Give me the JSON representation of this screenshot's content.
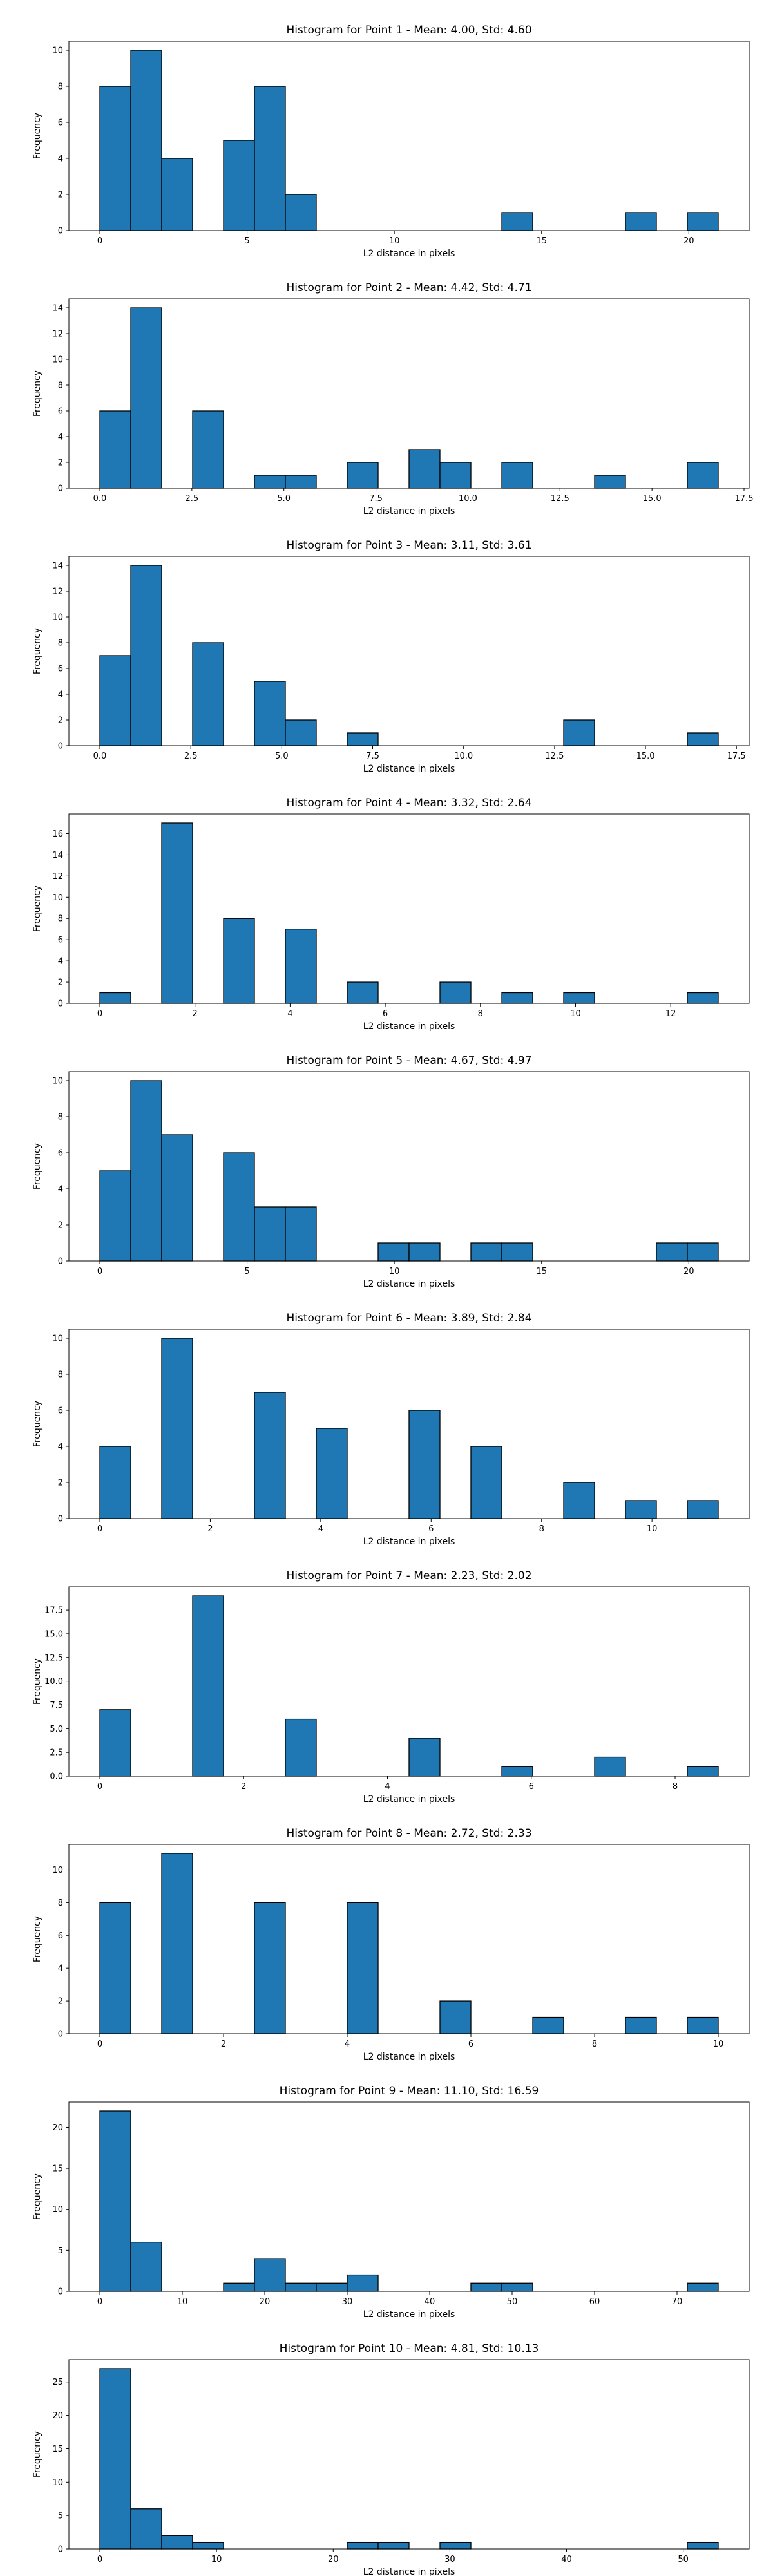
{
  "chart_data": [
    {
      "type": "bar",
      "title": "Histogram for Point 1 - Mean: 4.00, Std: 4.60",
      "xlabel": "L2 distance in pixels",
      "ylabel": "Frequency",
      "xlim": [
        -1.05,
        22.05
      ],
      "ylim": [
        0,
        10.5
      ],
      "xticks": [
        0,
        5,
        10,
        15,
        20
      ],
      "xtick_labels": [
        "0",
        "5",
        "10",
        "15",
        "20"
      ],
      "yticks": [
        0,
        2,
        4,
        6,
        8,
        10
      ],
      "ytick_labels": [
        "0",
        "2",
        "4",
        "6",
        "8",
        "10"
      ],
      "bin_width": 1.05,
      "bins": [
        {
          "x": 0,
          "count": 8
        },
        {
          "x": 1.05,
          "count": 10
        },
        {
          "x": 2.1,
          "count": 4
        },
        {
          "x": 4.2,
          "count": 5
        },
        {
          "x": 5.25,
          "count": 8
        },
        {
          "x": 6.3,
          "count": 2
        },
        {
          "x": 13.65,
          "count": 1
        },
        {
          "x": 17.85,
          "count": 1
        },
        {
          "x": 19.95,
          "count": 1
        }
      ]
    },
    {
      "type": "bar",
      "title": "Histogram for Point 2 - Mean: 4.42, Std: 4.71",
      "xlabel": "L2 distance in pixels",
      "ylabel": "Frequency",
      "xlim": [
        -0.84,
        17.64
      ],
      "ylim": [
        0,
        14.7
      ],
      "xticks": [
        0,
        2.5,
        5,
        7.5,
        10,
        12.5,
        15,
        17.5
      ],
      "xtick_labels": [
        "0.0",
        "2.5",
        "5.0",
        "7.5",
        "10.0",
        "12.5",
        "15.0",
        "17.5"
      ],
      "yticks": [
        0,
        2,
        4,
        6,
        8,
        10,
        12,
        14
      ],
      "ytick_labels": [
        "0",
        "2",
        "4",
        "6",
        "8",
        "10",
        "12",
        "14"
      ],
      "bin_width": 0.84,
      "bins": [
        {
          "x": 0,
          "count": 6
        },
        {
          "x": 0.84,
          "count": 14
        },
        {
          "x": 2.52,
          "count": 6
        },
        {
          "x": 4.2,
          "count": 1
        },
        {
          "x": 5.04,
          "count": 1
        },
        {
          "x": 6.72,
          "count": 2
        },
        {
          "x": 8.4,
          "count": 3
        },
        {
          "x": 9.24,
          "count": 2
        },
        {
          "x": 10.92,
          "count": 2
        },
        {
          "x": 13.44,
          "count": 1
        },
        {
          "x": 15.96,
          "count": 2
        }
      ]
    },
    {
      "type": "bar",
      "title": "Histogram for Point 3 - Mean: 3.11, Std: 3.61",
      "xlabel": "L2 distance in pixels",
      "ylabel": "Frequency",
      "xlim": [
        -0.85,
        17.85
      ],
      "ylim": [
        0,
        14.7
      ],
      "xticks": [
        0,
        2.5,
        5,
        7.5,
        10,
        12.5,
        15,
        17.5
      ],
      "xtick_labels": [
        "0.0",
        "2.5",
        "5.0",
        "7.5",
        "10.0",
        "12.5",
        "15.0",
        "17.5"
      ],
      "yticks": [
        0,
        2,
        4,
        6,
        8,
        10,
        12,
        14
      ],
      "ytick_labels": [
        "0",
        "2",
        "4",
        "6",
        "8",
        "10",
        "12",
        "14"
      ],
      "bin_width": 0.85,
      "bins": [
        {
          "x": 0,
          "count": 7
        },
        {
          "x": 0.85,
          "count": 14
        },
        {
          "x": 2.55,
          "count": 8
        },
        {
          "x": 4.25,
          "count": 5
        },
        {
          "x": 5.1,
          "count": 2
        },
        {
          "x": 6.8,
          "count": 1
        },
        {
          "x": 12.75,
          "count": 2
        },
        {
          "x": 16.15,
          "count": 1
        }
      ]
    },
    {
      "type": "bar",
      "title": "Histogram for Point 4 - Mean: 3.32, Std: 2.64",
      "xlabel": "L2 distance in pixels",
      "ylabel": "Frequency",
      "xlim": [
        -0.65,
        13.65
      ],
      "ylim": [
        0,
        17.85
      ],
      "xticks": [
        0,
        2,
        4,
        6,
        8,
        10,
        12
      ],
      "xtick_labels": [
        "0",
        "2",
        "4",
        "6",
        "8",
        "10",
        "12"
      ],
      "yticks": [
        0,
        2,
        4,
        6,
        8,
        10,
        12,
        14,
        16
      ],
      "ytick_labels": [
        "0",
        "2",
        "4",
        "6",
        "8",
        "10",
        "12",
        "14",
        "16"
      ],
      "bin_width": 0.65,
      "bins": [
        {
          "x": 0,
          "count": 1
        },
        {
          "x": 1.3,
          "count": 17
        },
        {
          "x": 2.6,
          "count": 8
        },
        {
          "x": 3.9,
          "count": 7
        },
        {
          "x": 5.2,
          "count": 2
        },
        {
          "x": 7.15,
          "count": 2
        },
        {
          "x": 8.45,
          "count": 1
        },
        {
          "x": 9.75,
          "count": 1
        },
        {
          "x": 12.35,
          "count": 1
        }
      ]
    },
    {
      "type": "bar",
      "title": "Histogram for Point 5 - Mean: 4.67, Std: 4.97",
      "xlabel": "L2 distance in pixels",
      "ylabel": "Frequency",
      "xlim": [
        -1.05,
        22.05
      ],
      "ylim": [
        0,
        10.5
      ],
      "xticks": [
        0,
        5,
        10,
        15,
        20
      ],
      "xtick_labels": [
        "0",
        "5",
        "10",
        "15",
        "20"
      ],
      "yticks": [
        0,
        2,
        4,
        6,
        8,
        10
      ],
      "ytick_labels": [
        "0",
        "2",
        "4",
        "6",
        "8",
        "10"
      ],
      "bin_width": 1.05,
      "bins": [
        {
          "x": 0,
          "count": 5
        },
        {
          "x": 1.05,
          "count": 10
        },
        {
          "x": 2.1,
          "count": 7
        },
        {
          "x": 4.2,
          "count": 6
        },
        {
          "x": 5.25,
          "count": 3
        },
        {
          "x": 6.3,
          "count": 3
        },
        {
          "x": 9.45,
          "count": 1
        },
        {
          "x": 10.5,
          "count": 1
        },
        {
          "x": 12.6,
          "count": 1
        },
        {
          "x": 13.65,
          "count": 1
        },
        {
          "x": 18.9,
          "count": 1
        },
        {
          "x": 19.95,
          "count": 1
        }
      ]
    },
    {
      "type": "bar",
      "title": "Histogram for Point 6 - Mean: 3.89, Std: 2.84",
      "xlabel": "L2 distance in pixels",
      "ylabel": "Frequency",
      "xlim": [
        -0.56,
        11.76
      ],
      "ylim": [
        0,
        10.5
      ],
      "xticks": [
        0,
        2,
        4,
        6,
        8,
        10
      ],
      "xtick_labels": [
        "0",
        "2",
        "4",
        "6",
        "8",
        "10"
      ],
      "yticks": [
        0,
        2,
        4,
        6,
        8,
        10
      ],
      "ytick_labels": [
        "0",
        "2",
        "4",
        "6",
        "8",
        "10"
      ],
      "bin_width": 0.56,
      "bins": [
        {
          "x": 0,
          "count": 4
        },
        {
          "x": 1.12,
          "count": 10
        },
        {
          "x": 2.8,
          "count": 7
        },
        {
          "x": 3.92,
          "count": 5
        },
        {
          "x": 5.6,
          "count": 6
        },
        {
          "x": 6.72,
          "count": 4
        },
        {
          "x": 8.4,
          "count": 2
        },
        {
          "x": 9.52,
          "count": 1
        },
        {
          "x": 10.64,
          "count": 1
        }
      ]
    },
    {
      "type": "bar",
      "title": "Histogram for Point 7 - Mean: 2.23, Std: 2.02",
      "xlabel": "L2 distance in pixels",
      "ylabel": "Frequency",
      "xlim": [
        -0.43,
        9.03
      ],
      "ylim": [
        0,
        19.95
      ],
      "xticks": [
        0,
        2,
        4,
        6,
        8
      ],
      "xtick_labels": [
        "0",
        "2",
        "4",
        "6",
        "8"
      ],
      "yticks": [
        0,
        2.5,
        5,
        7.5,
        10,
        12.5,
        15,
        17.5
      ],
      "ytick_labels": [
        "0.0",
        "2.5",
        "5.0",
        "7.5",
        "10.0",
        "12.5",
        "15.0",
        "17.5"
      ],
      "bin_width": 0.43,
      "bins": [
        {
          "x": 0,
          "count": 7
        },
        {
          "x": 1.29,
          "count": 19
        },
        {
          "x": 2.58,
          "count": 6
        },
        {
          "x": 4.3,
          "count": 4
        },
        {
          "x": 5.59,
          "count": 1
        },
        {
          "x": 6.88,
          "count": 2
        },
        {
          "x": 8.17,
          "count": 1
        }
      ]
    },
    {
      "type": "bar",
      "title": "Histogram for Point 8 - Mean: 2.72, Std: 2.33",
      "xlabel": "L2 distance in pixels",
      "ylabel": "Frequency",
      "xlim": [
        -0.5,
        10.5
      ],
      "ylim": [
        0,
        11.55
      ],
      "xticks": [
        0,
        2,
        4,
        6,
        8,
        10
      ],
      "xtick_labels": [
        "0",
        "2",
        "4",
        "6",
        "8",
        "10"
      ],
      "yticks": [
        0,
        2,
        4,
        6,
        8,
        10
      ],
      "ytick_labels": [
        "0",
        "2",
        "4",
        "6",
        "8",
        "10"
      ],
      "bin_width": 0.5,
      "bins": [
        {
          "x": 0,
          "count": 8
        },
        {
          "x": 1.0,
          "count": 11
        },
        {
          "x": 2.5,
          "count": 8
        },
        {
          "x": 4.0,
          "count": 8
        },
        {
          "x": 5.5,
          "count": 2
        },
        {
          "x": 7.0,
          "count": 1
        },
        {
          "x": 8.5,
          "count": 1
        },
        {
          "x": 9.5,
          "count": 1
        }
      ]
    },
    {
      "type": "bar",
      "title": "Histogram for Point 9 - Mean: 11.10, Std: 16.59",
      "xlabel": "L2 distance in pixels",
      "ylabel": "Frequency",
      "xlim": [
        -3.75,
        78.75
      ],
      "ylim": [
        0,
        23.1
      ],
      "xticks": [
        0,
        10,
        20,
        30,
        40,
        50,
        60,
        70
      ],
      "xtick_labels": [
        "0",
        "10",
        "20",
        "30",
        "40",
        "50",
        "60",
        "70"
      ],
      "yticks": [
        0,
        5,
        10,
        15,
        20
      ],
      "ytick_labels": [
        "0",
        "5",
        "10",
        "15",
        "20"
      ],
      "bin_width": 3.75,
      "bins": [
        {
          "x": 0,
          "count": 22
        },
        {
          "x": 3.75,
          "count": 6
        },
        {
          "x": 15.0,
          "count": 1
        },
        {
          "x": 18.75,
          "count": 4
        },
        {
          "x": 22.5,
          "count": 1
        },
        {
          "x": 26.25,
          "count": 1
        },
        {
          "x": 30.0,
          "count": 2
        },
        {
          "x": 45.0,
          "count": 1
        },
        {
          "x": 48.75,
          "count": 1
        },
        {
          "x": 71.25,
          "count": 1
        }
      ]
    },
    {
      "type": "bar",
      "title": "Histogram for Point 10 - Mean: 4.81, Std: 10.13",
      "xlabel": "L2 distance in pixels",
      "ylabel": "Frequency",
      "xlim": [
        -2.65,
        55.65
      ],
      "ylim": [
        0,
        28.35
      ],
      "xticks": [
        0,
        10,
        20,
        30,
        40,
        50
      ],
      "xtick_labels": [
        "0",
        "10",
        "20",
        "30",
        "40",
        "50"
      ],
      "yticks": [
        0,
        5,
        10,
        15,
        20,
        25
      ],
      "ytick_labels": [
        "0",
        "5",
        "10",
        "15",
        "20",
        "25"
      ],
      "bin_width": 2.65,
      "bins": [
        {
          "x": 0,
          "count": 27
        },
        {
          "x": 2.65,
          "count": 6
        },
        {
          "x": 5.3,
          "count": 2
        },
        {
          "x": 7.95,
          "count": 1
        },
        {
          "x": 21.2,
          "count": 1
        },
        {
          "x": 23.85,
          "count": 1
        },
        {
          "x": 29.15,
          "count": 1
        },
        {
          "x": 50.35,
          "count": 1
        }
      ]
    }
  ],
  "colors": {
    "bar_fill": "#1f77b4",
    "bar_edge": "#000000",
    "background": "#ffffff"
  }
}
